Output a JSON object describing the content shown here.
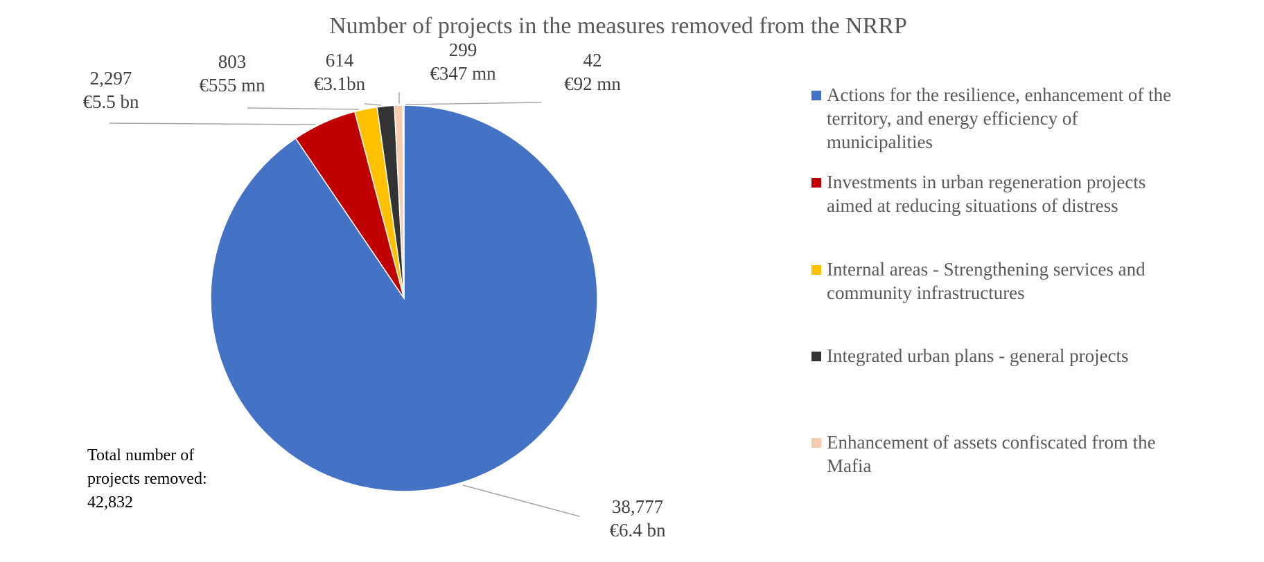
{
  "chart_data": {
    "type": "pie",
    "title": "Number of projects in the measures removed from the NRRP",
    "slices": [
      {
        "name": "Actions for the resilience, enhancement of the territory, and energy efficiency of municipalities",
        "legend_lines": [
          "Actions for the resilience, enhancement of the",
          "territory, and energy efficiency of",
          "municipalities"
        ],
        "value": 38777,
        "count_label": "38,777",
        "amount_label": "€6.4 bn",
        "color": "#4472C4"
      },
      {
        "name": "Investments in urban regeneration projects aimed at reducing situations of distress",
        "legend_lines": [
          "Investments in urban regeneration projects",
          "aimed at reducing situations of distress"
        ],
        "value": 2297,
        "count_label": "2,297",
        "amount_label": "€5.5 bn",
        "color": "#C00000"
      },
      {
        "name": "Internal areas - Strengthening services and community infrastructures",
        "legend_lines": [
          "Internal areas - Strengthening services and",
          "community infrastructures"
        ],
        "value": 803,
        "count_label": "803",
        "amount_label": "€555 mn",
        "color": "#FFC000"
      },
      {
        "name": "Integrated urban plans - general projects",
        "legend_lines": [
          "Integrated urban plans - general projects"
        ],
        "value": 614,
        "count_label": "614",
        "amount_label": "€3.1bn",
        "color": "#333333"
      },
      {
        "name": "Enhancement of assets confiscated from the Mafia",
        "legend_lines": [
          "Enhancement of assets confiscated from the",
          "Mafia"
        ],
        "value": 299,
        "count_label": "299",
        "amount_label": "€347 mn",
        "color": "#F8CBAD"
      },
      {
        "name": "",
        "legend_lines": [],
        "value": 42,
        "count_label": "42",
        "amount_label": "€92 mn",
        "color": "#70AD47"
      }
    ],
    "annotation_lines": [
      "Total number of",
      "projects removed:",
      "42,832"
    ],
    "legend_position": "right"
  }
}
